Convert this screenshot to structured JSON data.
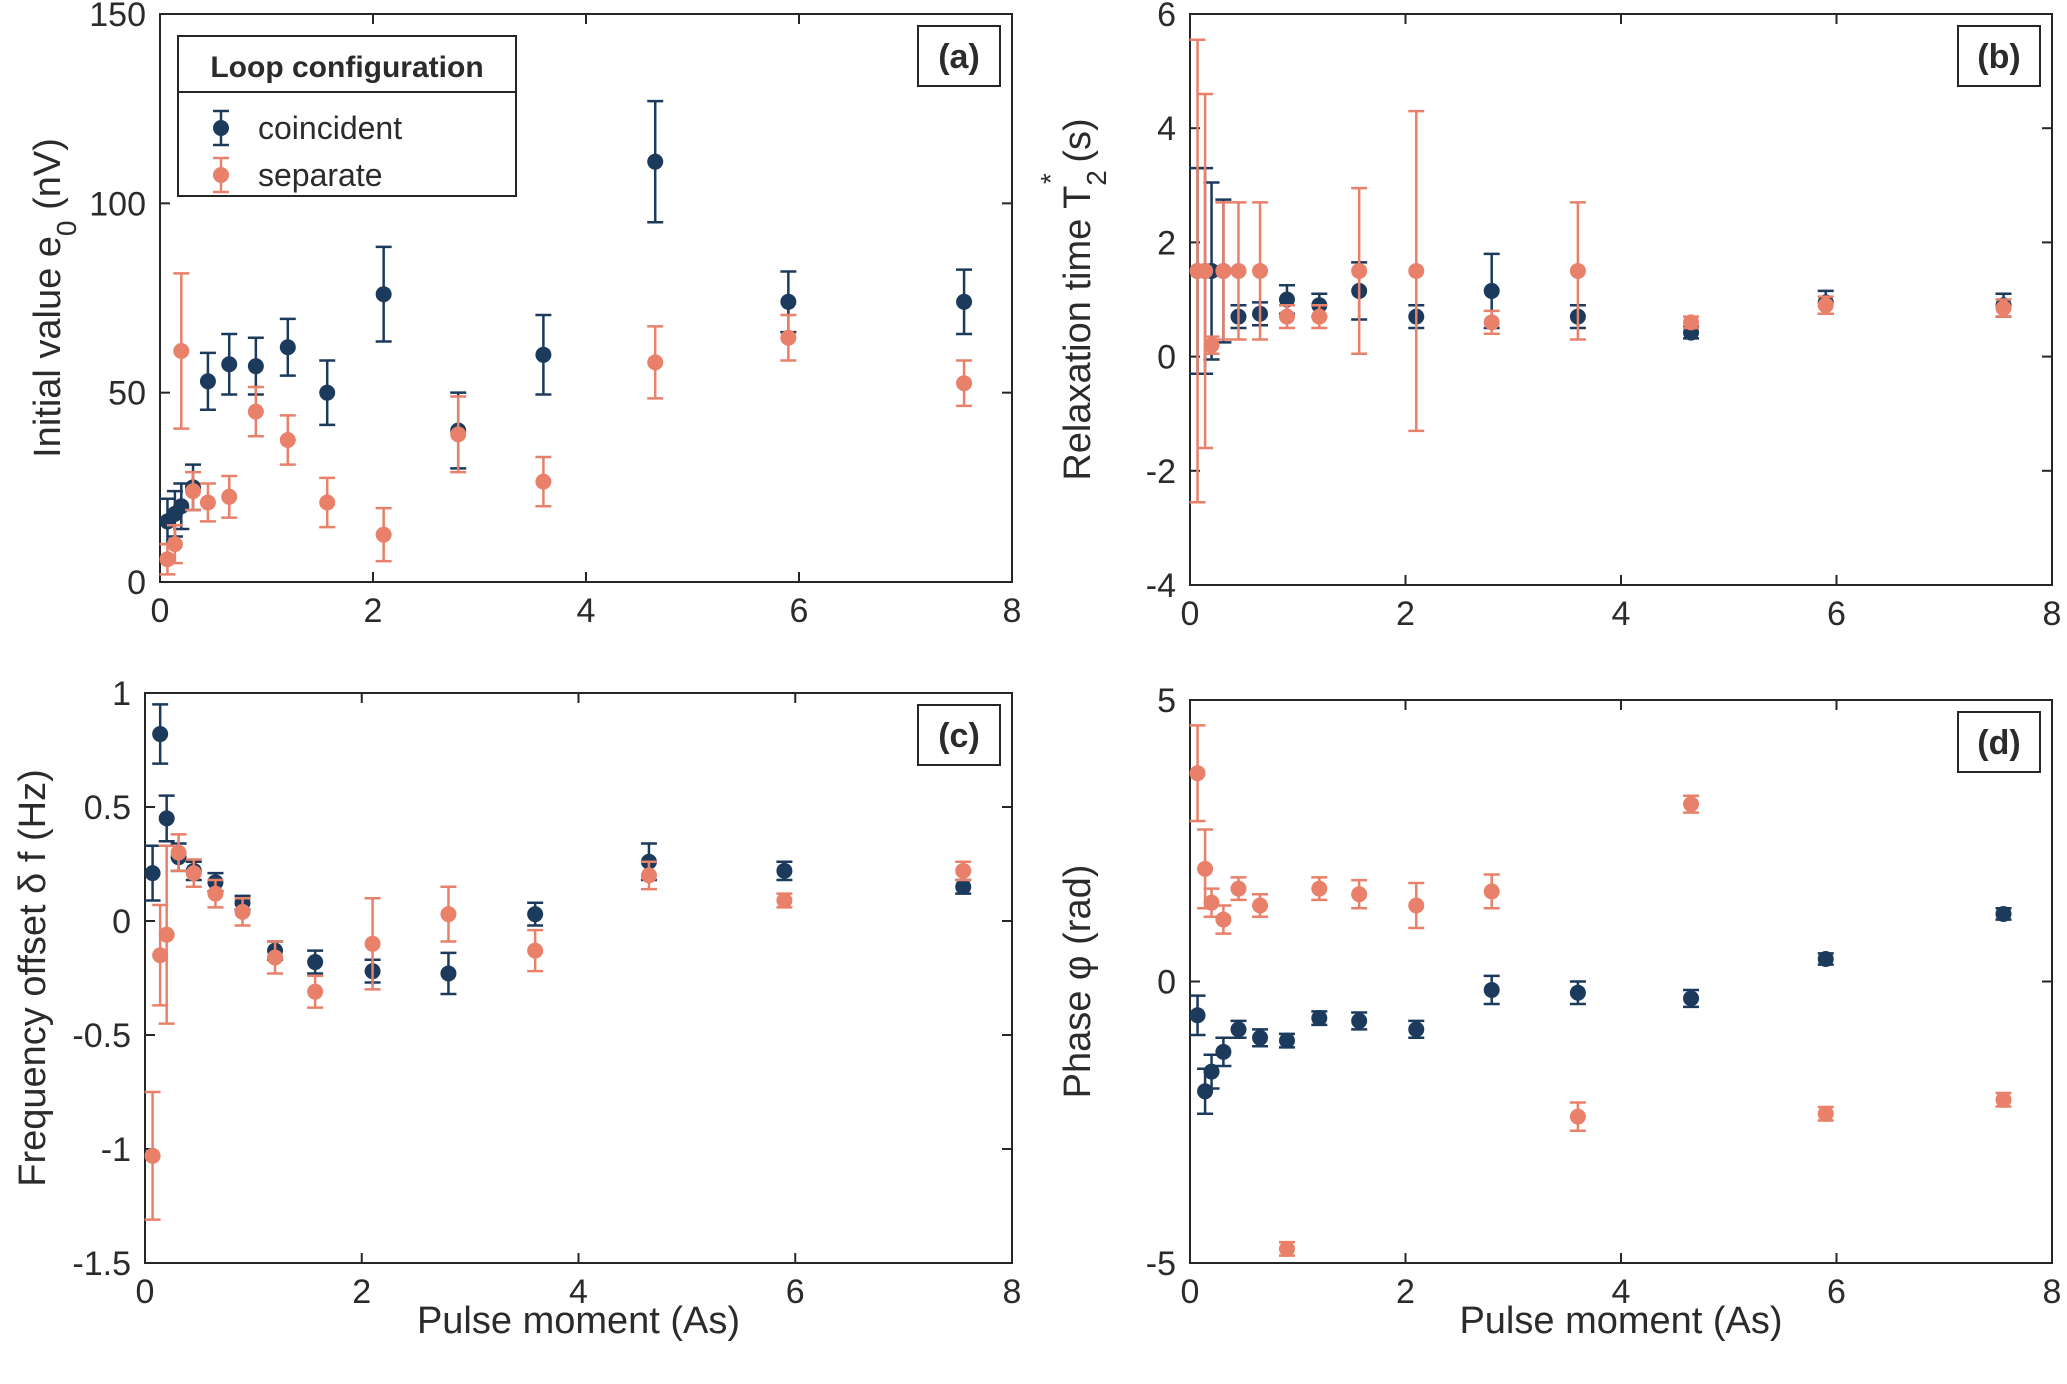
{
  "colors": {
    "coincident": "#1b3a5c",
    "separate": "#e8806a",
    "axis": "#262626",
    "background": "#ffffff"
  },
  "legend": {
    "title": "Loop configuration",
    "entries": [
      {
        "label": "coincident",
        "series": "coincident"
      },
      {
        "label": "separate",
        "series": "separate"
      }
    ]
  },
  "chart_data": [
    {
      "id": "a",
      "type": "scatter",
      "panel_label": "(a)",
      "ylabel": "Initial value  e",
      "ylabel_sub": "0",
      "ylabel_unit": "(nV)",
      "xlabel": "",
      "xlim": [
        0,
        8
      ],
      "ylim": [
        0,
        150
      ],
      "xticks": [
        0,
        2,
        4,
        6,
        8
      ],
      "yticks": [
        0,
        50,
        100,
        150
      ],
      "xticklabels": [
        "0",
        "2",
        "4",
        "6",
        "8"
      ],
      "yticklabels": [
        "0",
        "50",
        "100",
        "150"
      ],
      "legend": true,
      "series": [
        {
          "name": "coincident",
          "x": [
            0.07,
            0.14,
            0.2,
            0.31,
            0.45,
            0.65,
            0.9,
            1.2,
            1.57,
            2.1,
            2.8,
            3.6,
            4.65,
            5.9,
            7.55
          ],
          "y": [
            16,
            18,
            20,
            25,
            53,
            57.5,
            57,
            62,
            50,
            76,
            40,
            60,
            111,
            74,
            74
          ],
          "err": [
            6,
            6,
            6,
            6,
            7.5,
            8,
            7.5,
            7.5,
            8.5,
            12.5,
            10,
            10.5,
            16,
            8,
            8.5
          ]
        },
        {
          "name": "separate",
          "x": [
            0.07,
            0.14,
            0.2,
            0.31,
            0.45,
            0.65,
            0.9,
            1.2,
            1.57,
            2.1,
            2.8,
            3.6,
            4.65,
            5.9,
            7.55
          ],
          "y": [
            6,
            10,
            61,
            24,
            21,
            22.5,
            45,
            37.5,
            21,
            12.5,
            39,
            26.5,
            58,
            64.5,
            52.5
          ],
          "err": [
            4,
            5,
            20.5,
            5,
            5,
            5.5,
            6.5,
            6.5,
            6.5,
            7,
            10,
            6.5,
            9.5,
            6,
            6
          ]
        }
      ]
    },
    {
      "id": "b",
      "type": "scatter",
      "panel_label": "(b)",
      "ylabel": "Relaxation time  T",
      "ylabel_sub": "2",
      "ylabel_sup": "*",
      "ylabel_unit": "(s)",
      "xlabel": "",
      "xlim": [
        0,
        8
      ],
      "ylim": [
        -4,
        6
      ],
      "xticks": [
        0,
        2,
        4,
        6,
        8
      ],
      "yticks": [
        -4,
        -2,
        0,
        2,
        4,
        6
      ],
      "xticklabels": [
        "0",
        "2",
        "4",
        "6",
        "8"
      ],
      "yticklabels": [
        "-4",
        "-2",
        "0",
        "2",
        "4",
        "6"
      ],
      "series": [
        {
          "name": "coincident",
          "x": [
            0.07,
            0.14,
            0.2,
            0.31,
            0.45,
            0.65,
            0.9,
            1.2,
            1.57,
            2.1,
            2.8,
            3.6,
            4.65,
            5.9,
            7.55
          ],
          "y": [
            1.5,
            1.5,
            1.5,
            1.5,
            0.7,
            0.75,
            1.0,
            0.9,
            1.15,
            0.7,
            1.15,
            0.7,
            0.42,
            0.95,
            0.9
          ],
          "err": [
            1.8,
            1.8,
            1.55,
            1.25,
            0.2,
            0.2,
            0.25,
            0.2,
            0.5,
            0.2,
            0.65,
            0.2,
            0.1,
            0.2,
            0.2
          ]
        },
        {
          "name": "separate",
          "x": [
            0.07,
            0.14,
            0.2,
            0.31,
            0.45,
            0.65,
            0.9,
            1.2,
            1.57,
            2.1,
            2.8,
            3.6,
            4.65,
            5.9,
            7.55
          ],
          "y": [
            1.5,
            1.5,
            0.2,
            1.5,
            1.5,
            1.5,
            0.7,
            0.7,
            1.5,
            1.5,
            0.6,
            1.5,
            0.6,
            0.9,
            0.85
          ],
          "err": [
            4.05,
            3.1,
            0.15,
            1.2,
            1.2,
            1.2,
            0.2,
            0.2,
            1.45,
            2.8,
            0.2,
            1.2,
            0.1,
            0.15,
            0.15
          ]
        }
      ]
    },
    {
      "id": "c",
      "type": "scatter",
      "panel_label": "(c)",
      "ylabel": "Frequency offset  δ f",
      "ylabel_unit": "(Hz)",
      "xlabel": "Pulse moment (As)",
      "xlim": [
        0,
        8
      ],
      "ylim": [
        -1.5,
        1
      ],
      "xticks": [
        0,
        2,
        4,
        6,
        8
      ],
      "yticks": [
        -1.5,
        -1,
        -0.5,
        0,
        0.5,
        1
      ],
      "xticklabels": [
        "0",
        "2",
        "4",
        "6",
        "8"
      ],
      "yticklabels": [
        "-1.5",
        "-1",
        "-0.5",
        "0",
        "0.5",
        "1"
      ],
      "series": [
        {
          "name": "coincident",
          "x": [
            0.07,
            0.14,
            0.2,
            0.31,
            0.45,
            0.65,
            0.9,
            1.2,
            1.57,
            2.1,
            2.8,
            3.6,
            4.65,
            5.9,
            7.55
          ],
          "y": [
            0.21,
            0.82,
            0.45,
            0.28,
            0.22,
            0.17,
            0.08,
            -0.13,
            -0.18,
            -0.22,
            -0.23,
            0.03,
            0.26,
            0.22,
            0.15
          ],
          "err": [
            0.12,
            0.13,
            0.1,
            0.06,
            0.04,
            0.04,
            0.03,
            0.04,
            0.05,
            0.05,
            0.09,
            0.05,
            0.08,
            0.04,
            0.03
          ]
        },
        {
          "name": "separate",
          "x": [
            0.07,
            0.14,
            0.2,
            0.31,
            0.45,
            0.65,
            0.9,
            1.2,
            1.57,
            2.1,
            2.8,
            3.6,
            4.65,
            5.9,
            7.55
          ],
          "y": [
            -1.03,
            -0.15,
            -0.06,
            0.3,
            0.21,
            0.12,
            0.04,
            -0.16,
            -0.31,
            -0.1,
            0.03,
            -0.13,
            0.2,
            0.09,
            0.22
          ],
          "err": [
            0.28,
            0.22,
            0.39,
            0.08,
            0.06,
            0.06,
            0.06,
            0.07,
            0.07,
            0.2,
            0.12,
            0.09,
            0.06,
            0.03,
            0.04
          ]
        }
      ]
    },
    {
      "id": "d",
      "type": "scatter",
      "panel_label": "(d)",
      "ylabel": "Phase  φ",
      "ylabel_unit": "(rad)",
      "xlabel": "Pulse moment (As)",
      "xlim": [
        0,
        8
      ],
      "ylim": [
        -5,
        5
      ],
      "xticks": [
        0,
        2,
        4,
        6,
        8
      ],
      "yticks": [
        -5,
        0,
        5
      ],
      "xticklabels": [
        "0",
        "2",
        "4",
        "6",
        "8"
      ],
      "yticklabels": [
        "-5",
        "0",
        "5"
      ],
      "series": [
        {
          "name": "coincident",
          "x": [
            0.07,
            0.14,
            0.2,
            0.31,
            0.45,
            0.65,
            0.9,
            1.2,
            1.57,
            2.1,
            2.8,
            3.6,
            4.65,
            5.9,
            7.55
          ],
          "y": [
            -0.6,
            -1.95,
            -1.6,
            -1.25,
            -0.85,
            -1.0,
            -1.05,
            -0.65,
            -0.7,
            -0.85,
            -0.15,
            -0.2,
            -0.3,
            0.4,
            1.2
          ],
          "err": [
            0.35,
            0.4,
            0.3,
            0.25,
            0.15,
            0.15,
            0.12,
            0.12,
            0.15,
            0.15,
            0.25,
            0.2,
            0.15,
            0.1,
            0.1
          ]
        },
        {
          "name": "separate",
          "x": [
            0.07,
            0.14,
            0.2,
            0.31,
            0.45,
            0.65,
            0.9,
            1.2,
            1.57,
            2.1,
            2.8,
            3.6,
            4.65,
            5.9,
            7.55
          ],
          "y": [
            3.7,
            2.0,
            1.4,
            1.1,
            1.65,
            1.35,
            -4.75,
            1.65,
            1.55,
            1.35,
            1.6,
            -2.4,
            3.15,
            -2.35,
            -2.1
          ],
          "err": [
            0.85,
            0.7,
            0.25,
            0.25,
            0.2,
            0.2,
            0.12,
            0.2,
            0.25,
            0.4,
            0.3,
            0.25,
            0.15,
            0.12,
            0.12
          ]
        }
      ]
    }
  ]
}
